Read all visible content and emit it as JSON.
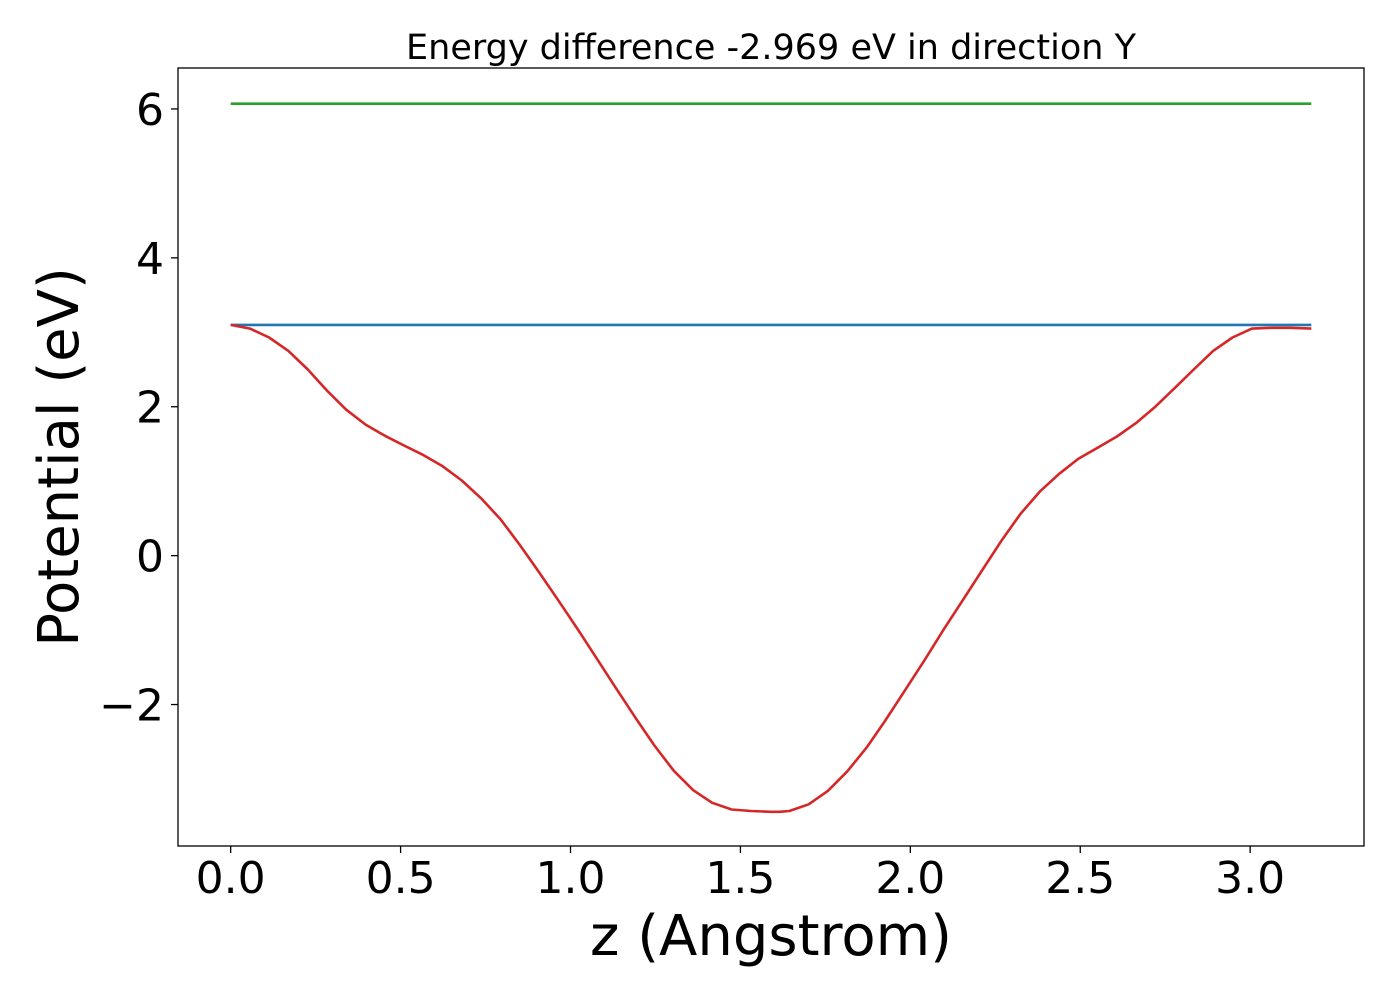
{
  "chart_data": {
    "type": "line",
    "title": "Energy difference -2.969 eV in direction Y",
    "xlabel": "z (Angstrom)",
    "ylabel": "Potential (eV)",
    "xlim": [
      -0.155,
      3.335
    ],
    "ylim": [
      -3.9,
      6.55
    ],
    "xticks": [
      0.0,
      0.5,
      1.0,
      1.5,
      2.0,
      2.5,
      3.0
    ],
    "xtick_labels": [
      "0.0",
      "0.5",
      "1.0",
      "1.5",
      "2.0",
      "2.5",
      "3.0"
    ],
    "yticks": [
      -2,
      0,
      2,
      4,
      6
    ],
    "ytick_labels": [
      "−2",
      "0",
      "2",
      "4",
      "6"
    ],
    "grid": false,
    "legend": "none",
    "series": [
      {
        "color": "#2ca02c",
        "x": [
          0.0,
          3.18
        ],
        "y": [
          6.07,
          6.07
        ]
      },
      {
        "color": "#1f77b4",
        "x": [
          0.0,
          3.18
        ],
        "y": [
          3.1,
          3.1
        ]
      },
      {
        "color": "#d62728",
        "x": [
          0.0,
          0.057,
          0.113,
          0.17,
          0.227,
          0.283,
          0.34,
          0.397,
          0.454,
          0.51,
          0.567,
          0.624,
          0.68,
          0.737,
          0.794,
          0.85,
          0.907,
          0.964,
          1.02,
          1.077,
          1.134,
          1.19,
          1.247,
          1.304,
          1.361,
          1.417,
          1.474,
          1.531,
          1.587,
          1.615,
          1.644,
          1.701,
          1.757,
          1.814,
          1.871,
          1.927,
          1.984,
          2.041,
          2.097,
          2.154,
          2.211,
          2.268,
          2.324,
          2.381,
          2.438,
          2.494,
          2.551,
          2.608,
          2.664,
          2.721,
          2.778,
          2.834,
          2.891,
          2.948,
          3.005,
          3.061,
          3.118,
          3.18
        ],
        "y": [
          3.1,
          3.05,
          2.93,
          2.75,
          2.5,
          2.22,
          1.96,
          1.76,
          1.61,
          1.48,
          1.35,
          1.2,
          1.01,
          0.77,
          0.49,
          0.15,
          -0.22,
          -0.6,
          -0.98,
          -1.38,
          -1.78,
          -2.17,
          -2.55,
          -2.89,
          -3.15,
          -3.32,
          -3.41,
          -3.43,
          -3.44,
          -3.44,
          -3.43,
          -3.34,
          -3.16,
          -2.9,
          -2.58,
          -2.21,
          -1.81,
          -1.41,
          -1.0,
          -0.6,
          -0.2,
          0.2,
          0.56,
          0.86,
          1.1,
          1.3,
          1.45,
          1.6,
          1.78,
          2.0,
          2.25,
          2.5,
          2.75,
          2.93,
          3.05,
          3.06,
          3.06,
          3.05
        ]
      }
    ]
  }
}
